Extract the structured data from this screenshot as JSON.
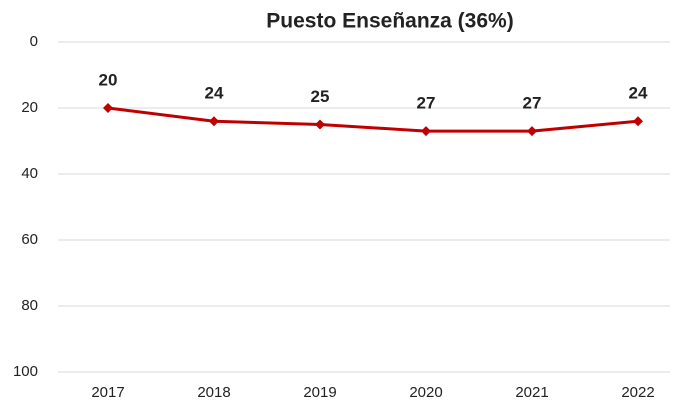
{
  "chart_data": {
    "type": "line",
    "title": "Puesto Enseñanza (36%)",
    "categories": [
      "2017",
      "2018",
      "2019",
      "2020",
      "2021",
      "2022"
    ],
    "series": [
      {
        "name": "Puesto Enseñanza",
        "color": "#c00000",
        "values": [
          20,
          24,
          25,
          27,
          27,
          24
        ]
      }
    ],
    "ylim": [
      0,
      100
    ],
    "yticks": [
      0,
      20,
      40,
      60,
      80,
      100
    ],
    "invert_y": true,
    "grid": true,
    "legend": false
  }
}
